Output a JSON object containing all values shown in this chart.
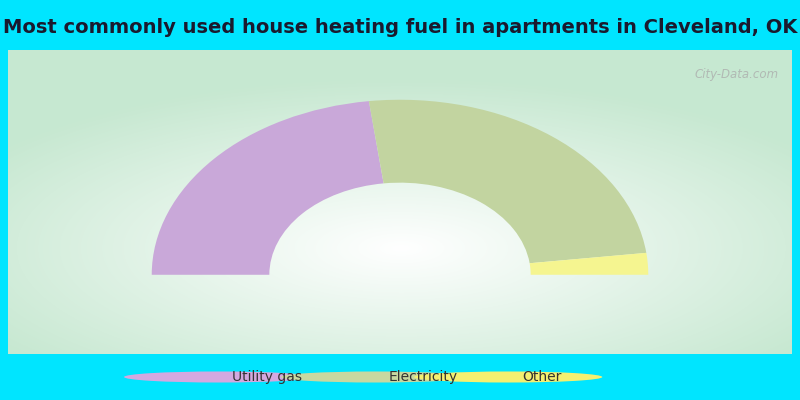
{
  "title": "Most commonly used house heating fuel in apartments in Cleveland, OK",
  "title_fontsize": 14,
  "title_color": "#1a1a2e",
  "cyan_color": "#00e5ff",
  "slices": [
    {
      "label": "Utility gas",
      "value": 46.0,
      "color": "#c9a8d9"
    },
    {
      "label": "Electricity",
      "value": 50.0,
      "color": "#c2d4a0"
    },
    {
      "label": "Other",
      "value": 4.0,
      "color": "#f5f590"
    }
  ],
  "legend_colors": [
    "#d4a8e0",
    "#c8d8a0",
    "#f5f070"
  ],
  "legend_labels": [
    "Utility gas",
    "Electricity",
    "Other"
  ],
  "watermark": "City-Data.com",
  "fig_width": 8.0,
  "fig_height": 4.0,
  "dpi": 100
}
